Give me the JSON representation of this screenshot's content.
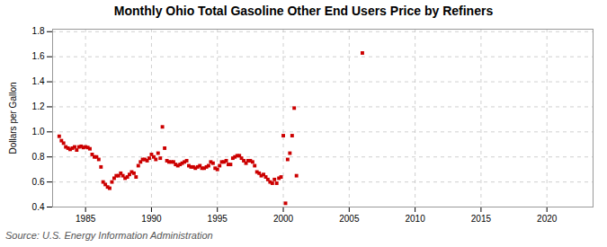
{
  "chart_data": {
    "type": "scatter",
    "title": "Monthly Ohio Total Gasoline Other End Users Price by Refiners",
    "ylabel": "Dollars per Gallon",
    "source": "Source: U.S. Energy Information Administration",
    "color": "#cc0000",
    "marker": "square",
    "grid": true,
    "xlim": [
      1982.5,
      2023.5
    ],
    "ylim": [
      0.4,
      1.82
    ],
    "xticks": [
      1985,
      1990,
      1995,
      2000,
      2005,
      2010,
      2015,
      2020
    ],
    "yticks": [
      0.4,
      0.6,
      0.8,
      {
        "value": 1.0,
        "label": "1.0"
      },
      1.2,
      1.4,
      1.6,
      1.8
    ],
    "x": [
      1983.0,
      1983.17,
      1983.33,
      1983.5,
      1983.67,
      1983.83,
      1984.0,
      1984.17,
      1984.33,
      1984.5,
      1984.67,
      1984.83,
      1985.0,
      1985.17,
      1985.33,
      1985.5,
      1985.67,
      1985.83,
      1986.0,
      1986.17,
      1986.33,
      1986.5,
      1986.67,
      1986.83,
      1987.0,
      1987.17,
      1987.33,
      1987.5,
      1987.67,
      1987.83,
      1988.0,
      1988.17,
      1988.33,
      1988.5,
      1988.67,
      1988.83,
      1989.0,
      1989.17,
      1989.33,
      1989.5,
      1989.67,
      1989.83,
      1990.0,
      1990.17,
      1990.33,
      1990.5,
      1990.67,
      1990.83,
      1991.0,
      1991.17,
      1991.33,
      1991.5,
      1991.67,
      1991.83,
      1992.0,
      1992.17,
      1992.33,
      1992.5,
      1992.67,
      1992.83,
      1993.0,
      1993.17,
      1993.33,
      1993.5,
      1993.67,
      1993.83,
      1994.0,
      1994.17,
      1994.33,
      1994.5,
      1994.67,
      1994.83,
      1995.0,
      1995.17,
      1995.33,
      1995.5,
      1995.67,
      1995.83,
      1996.0,
      1996.17,
      1996.33,
      1996.5,
      1996.67,
      1996.83,
      1997.0,
      1997.17,
      1997.33,
      1997.5,
      1997.67,
      1997.83,
      1998.0,
      1998.17,
      1998.33,
      1998.5,
      1998.67,
      1998.83,
      1999.0,
      1999.17,
      1999.33,
      1999.5,
      1999.67,
      1999.83,
      2000.0,
      2000.17,
      2000.33,
      2000.5,
      2000.67,
      2000.83,
      2001.0,
      2006.0
    ],
    "values": [
      0.965,
      0.93,
      0.91,
      0.88,
      0.87,
      0.86,
      0.87,
      0.88,
      0.855,
      0.88,
      0.885,
      0.875,
      0.88,
      0.875,
      0.865,
      0.82,
      0.8,
      0.8,
      0.78,
      0.72,
      0.6,
      0.58,
      0.56,
      0.55,
      0.6,
      0.63,
      0.65,
      0.65,
      0.67,
      0.65,
      0.63,
      0.64,
      0.66,
      0.68,
      0.67,
      0.64,
      0.73,
      0.76,
      0.78,
      0.78,
      0.77,
      0.79,
      0.82,
      0.8,
      0.78,
      0.83,
      0.79,
      1.04,
      0.87,
      0.77,
      0.76,
      0.76,
      0.76,
      0.74,
      0.73,
      0.74,
      0.75,
      0.76,
      0.77,
      0.73,
      0.72,
      0.72,
      0.71,
      0.72,
      0.73,
      0.71,
      0.71,
      0.72,
      0.73,
      0.76,
      0.75,
      0.71,
      0.7,
      0.73,
      0.76,
      0.76,
      0.77,
      0.74,
      0.74,
      0.79,
      0.8,
      0.81,
      0.81,
      0.79,
      0.77,
      0.75,
      0.77,
      0.77,
      0.76,
      0.73,
      0.68,
      0.67,
      0.65,
      0.66,
      0.64,
      0.62,
      0.6,
      0.59,
      0.62,
      0.59,
      0.63,
      0.64,
      0.97,
      0.43,
      0.78,
      0.83,
      0.97,
      1.19,
      0.65,
      1.63
    ]
  }
}
